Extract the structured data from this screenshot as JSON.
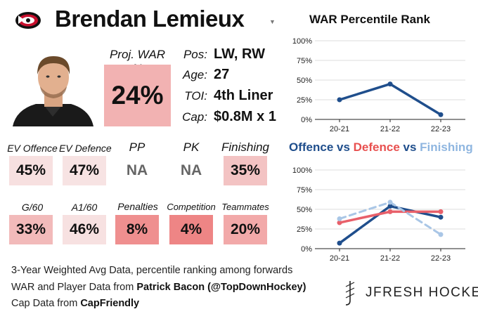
{
  "player": {
    "name": "Brendan Lemieux",
    "proj_war_label": "Proj. WAR %",
    "proj_war_value": "24%"
  },
  "info": [
    {
      "label": "Pos:",
      "value": "LW, RW"
    },
    {
      "label": "Age:",
      "value": "27"
    },
    {
      "label": "TOI:",
      "value": "4th Liner"
    },
    {
      "label": "Cap:",
      "value": "$0.8M x 1"
    }
  ],
  "stats_row1": [
    {
      "label": "EV Offence",
      "value": "45%",
      "color": "#f7e0e0"
    },
    {
      "label": "EV Defence",
      "value": "47%",
      "color": "#f7e3e3"
    },
    {
      "label": "PP",
      "value": "NA",
      "color": "#ffffff"
    },
    {
      "label": "PK",
      "value": "NA",
      "color": "#ffffff"
    },
    {
      "label": "Finishing",
      "value": "35%",
      "color": "#f3c3c3"
    }
  ],
  "stats_row2": [
    {
      "label": "G/60",
      "value": "33%",
      "color": "#f2baba"
    },
    {
      "label": "A1/60",
      "value": "46%",
      "color": "#f7e1e1"
    },
    {
      "label": "Penalties",
      "value": "8%",
      "color": "#ef8f8f"
    },
    {
      "label": "Competition",
      "value": "4%",
      "color": "#ee8585"
    },
    {
      "label": "Teammates",
      "value": "20%",
      "color": "#f2a9a9"
    }
  ],
  "footer": {
    "line1": "3-Year Weighted Avg Data, percentile ranking among forwards",
    "line2_prefix": "WAR and Player Data from ",
    "line2_source": "Patrick Bacon (@TopDownHockey)",
    "line3_prefix": "Cap Data from ",
    "line3_source": "CapFriendly",
    "brand": "JFRESH HOCKEY"
  },
  "chart_data": [
    {
      "type": "line",
      "title": "WAR Percentile Rank",
      "x": [
        "20-21",
        "21-22",
        "22-23"
      ],
      "series": [
        {
          "values": [
            25,
            45,
            6
          ],
          "color": "#1f4e8c"
        }
      ],
      "ylim": [
        0,
        100
      ],
      "yticks": [
        "0%",
        "25%",
        "50%",
        "75%",
        "100%"
      ],
      "grid": true
    },
    {
      "type": "line",
      "title_parts": [
        {
          "text": "Offence",
          "color": "#1f4e8c"
        },
        {
          "text": " vs ",
          "color": "#1f4e8c"
        },
        {
          "text": "Defence",
          "color": "#e8504f"
        },
        {
          "text": " vs ",
          "color": "#1f4e8c"
        },
        {
          "text": "Finishing",
          "color": "#8fb6e0"
        }
      ],
      "x": [
        "20-21",
        "21-22",
        "22-23"
      ],
      "series": [
        {
          "name": "Offence",
          "values": [
            7,
            54,
            40
          ],
          "color": "#1f4e8c",
          "style": "solid"
        },
        {
          "name": "Defence",
          "values": [
            33,
            47,
            47
          ],
          "color": "#e8606a",
          "style": "solid"
        },
        {
          "name": "Finishing",
          "values": [
            38,
            59,
            18
          ],
          "color": "#a9c6e6",
          "style": "dashed"
        }
      ],
      "ylim": [
        0,
        100
      ],
      "yticks": [
        "0%",
        "25%",
        "50%",
        "75%",
        "100%"
      ],
      "grid": true
    }
  ]
}
